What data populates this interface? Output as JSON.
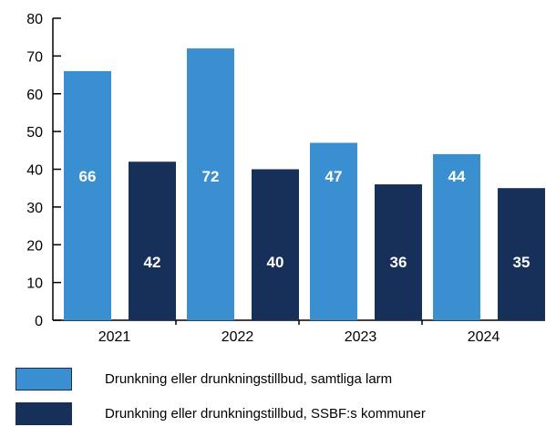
{
  "chart_data": {
    "type": "bar",
    "title": "",
    "xlabel": "",
    "ylabel": "",
    "categories": [
      "2021",
      "2022",
      "2023",
      "2024"
    ],
    "ylim": [
      0,
      80
    ],
    "yticks": [
      0,
      10,
      20,
      30,
      40,
      50,
      60,
      70,
      80
    ],
    "grid": false,
    "legend_position": "bottom",
    "series": [
      {
        "name": "Drunkning eller drunkningstillbud, samtliga larm",
        "values": [
          66,
          72,
          47,
          44
        ],
        "color": "#3a8fd0"
      },
      {
        "name": "Drunkning eller drunkningstillbud, SSBF:s kommuner",
        "values": [
          42,
          40,
          36,
          35
        ],
        "color": "#173059"
      }
    ]
  }
}
